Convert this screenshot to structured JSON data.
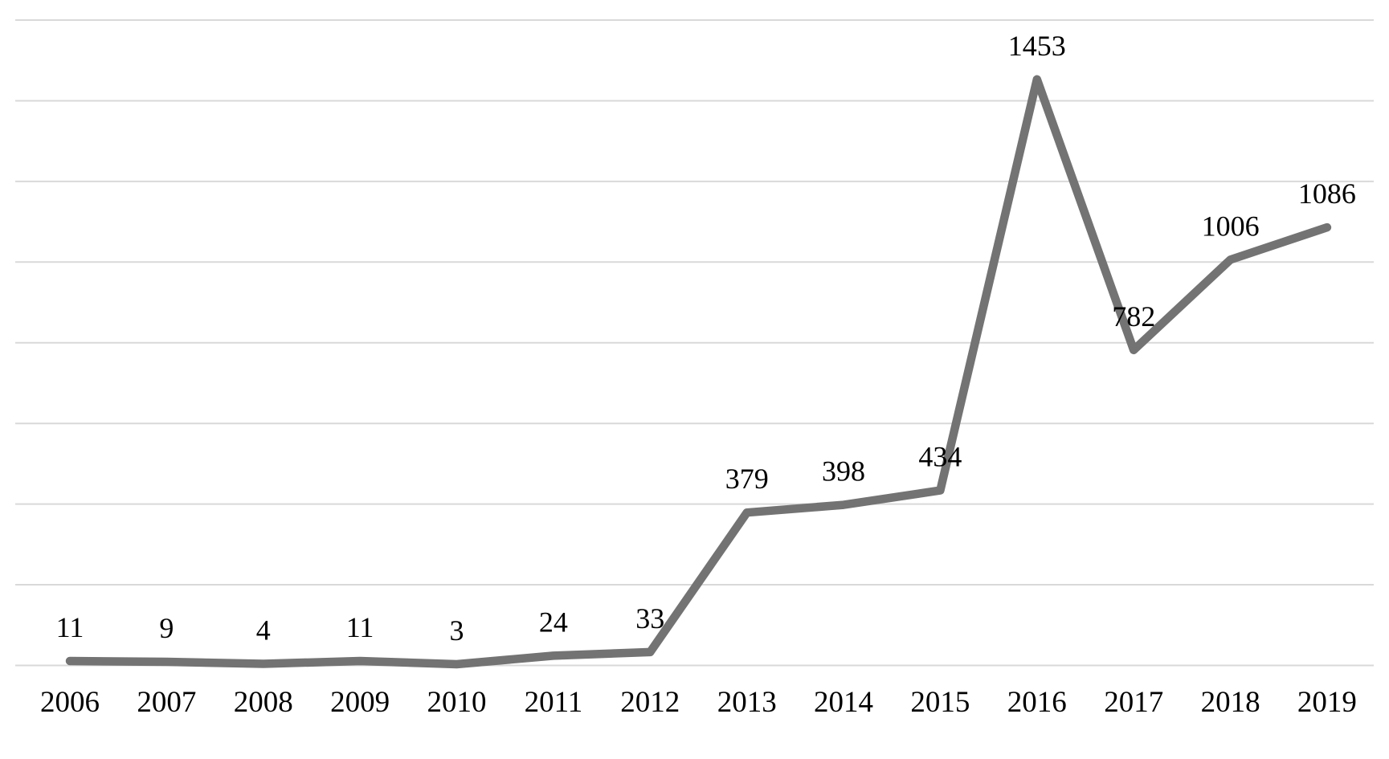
{
  "chart_data": {
    "type": "line",
    "title": "",
    "xlabel": "",
    "ylabel": "",
    "categories": [
      "2006",
      "2007",
      "2008",
      "2009",
      "2010",
      "2011",
      "2012",
      "2013",
      "2014",
      "2015",
      "2016",
      "2017",
      "2018",
      "2019"
    ],
    "series": [
      {
        "name": "",
        "values": [
          11,
          9,
          4,
          11,
          3,
          24,
          33,
          379,
          398,
          434,
          1453,
          782,
          1006,
          1086
        ],
        "data_labels": [
          "11",
          "9",
          "4",
          "11",
          "3",
          "24",
          "33",
          "379",
          "398",
          "434",
          "1453",
          "782",
          "1006",
          "1086"
        ]
      }
    ],
    "ylim": [
      0,
      1600
    ],
    "gridline_step": 200,
    "grid": "horizontal-only",
    "y_axis_tick_labels_visible": false,
    "legend": "none",
    "colors": {
      "line": "#737373",
      "gridline": "#d9d9d9",
      "data_label": "#000000",
      "axis_label": "#000000",
      "background": "#ffffff"
    }
  }
}
